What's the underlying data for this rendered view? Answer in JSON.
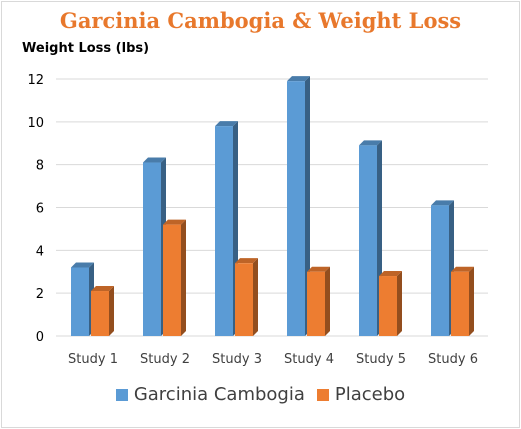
{
  "chart_data": {
    "type": "bar",
    "title": "Garcinia Cambogia & Weight Loss",
    "ylabel": "Weight Loss (lbs)",
    "xlabel": "",
    "categories": [
      "Study 1",
      "Study 2",
      "Study 3",
      "Study 4",
      "Study 5",
      "Study 6"
    ],
    "series": [
      {
        "name": "Garcinia Cambogia",
        "values": [
          3.2,
          8.1,
          9.8,
          11.9,
          8.9,
          6.1
        ],
        "color": "#5b9bd5"
      },
      {
        "name": "Placebo",
        "values": [
          2.1,
          5.2,
          3.4,
          3.0,
          2.8,
          3.0
        ],
        "color": "#ed7d31"
      }
    ],
    "ylim": [
      0,
      12
    ],
    "yticks": [
      0,
      2,
      4,
      6,
      8,
      10,
      12
    ],
    "grid": true,
    "legend_position": "bottom"
  }
}
